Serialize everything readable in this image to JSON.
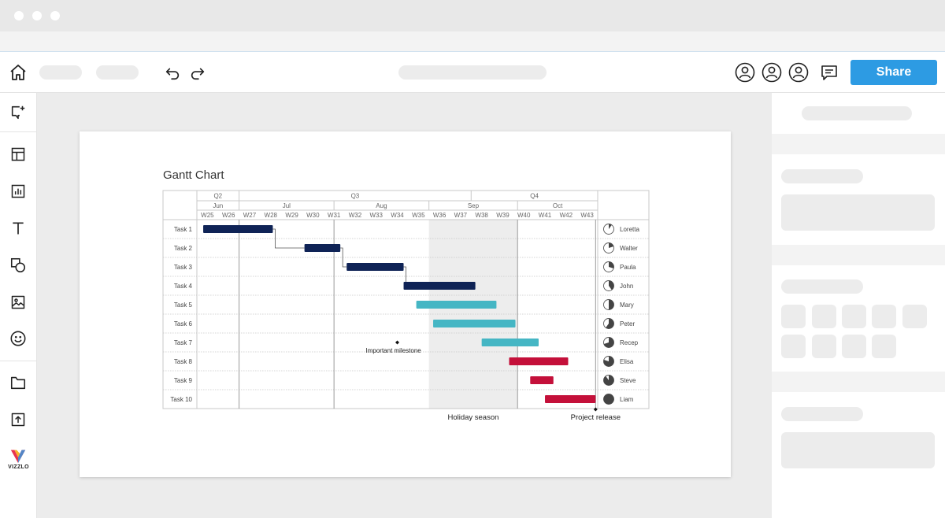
{
  "toolbar": {
    "share_label": "Share"
  },
  "icons": {
    "home": "home-icon",
    "undo": "undo-icon",
    "redo": "redo-icon",
    "user": "user-icon",
    "comment": "comment-icon"
  },
  "sidebar": {
    "icons": [
      "add-slide-icon",
      "layout-icon",
      "chart-icon",
      "text-icon",
      "shapes-icon",
      "image-icon",
      "emoji-icon",
      "folder-icon",
      "upload-icon"
    ],
    "logo_text": "VIZZLO"
  },
  "colors": {
    "accent": "#2d9be3",
    "navy": "#0f2356",
    "teal": "#45b6c4",
    "red": "#c4103a",
    "holiday": "#ededed"
  },
  "chart_data": {
    "type": "gantt",
    "title": "Gantt Chart",
    "quarters": [
      {
        "label": "Q2",
        "start": 0,
        "end": 2
      },
      {
        "label": "Q3",
        "start": 2,
        "end": 13
      },
      {
        "label": "Q4",
        "start": 13,
        "end": 19
      }
    ],
    "months": [
      {
        "label": "Jun",
        "start": 0,
        "end": 2
      },
      {
        "label": "Jul",
        "start": 2,
        "end": 6.5
      },
      {
        "label": "Aug",
        "start": 6.5,
        "end": 11
      },
      {
        "label": "Sep",
        "start": 11,
        "end": 15.2
      },
      {
        "label": "Oct",
        "start": 15.2,
        "end": 19
      }
    ],
    "weeks": [
      "W25",
      "W26",
      "W27",
      "W28",
      "W29",
      "W30",
      "W31",
      "W32",
      "W33",
      "W34",
      "W35",
      "W36",
      "W37",
      "W38",
      "W39",
      "W40",
      "W41",
      "W42",
      "W43"
    ],
    "tasks": [
      {
        "name": "Task 1",
        "start": 0.3,
        "end": 3.6,
        "color": "navy",
        "owner": "Loretta",
        "progress": 0.1
      },
      {
        "name": "Task 2",
        "start": 5.1,
        "end": 6.8,
        "color": "navy",
        "owner": "Walter",
        "progress": 0.2
      },
      {
        "name": "Task 3",
        "start": 7.1,
        "end": 9.8,
        "color": "navy",
        "owner": "Paula",
        "progress": 0.3
      },
      {
        "name": "Task 4",
        "start": 9.8,
        "end": 13.2,
        "color": "navy",
        "owner": "John",
        "progress": 0.4
      },
      {
        "name": "Task 5",
        "start": 10.4,
        "end": 14.2,
        "color": "teal",
        "owner": "Mary",
        "progress": 0.5
      },
      {
        "name": "Task 6",
        "start": 11.2,
        "end": 15.1,
        "color": "teal",
        "owner": "Peter",
        "progress": 0.6
      },
      {
        "name": "Task 7",
        "start": 13.5,
        "end": 16.2,
        "color": "teal",
        "owner": "Recep",
        "progress": 0.7
      },
      {
        "name": "Task 8",
        "start": 14.8,
        "end": 17.6,
        "color": "red",
        "owner": "Elisa",
        "progress": 0.8
      },
      {
        "name": "Task 9",
        "start": 15.8,
        "end": 16.9,
        "color": "red",
        "owner": "Steve",
        "progress": 0.9
      },
      {
        "name": "Task 10",
        "start": 16.5,
        "end": 18.9,
        "color": "red",
        "owner": "Liam",
        "progress": 1.0
      }
    ],
    "dependencies": [
      [
        0,
        1
      ],
      [
        1,
        2
      ],
      [
        2,
        3
      ]
    ],
    "holiday": {
      "label": "Holiday season",
      "start": 11,
      "end": 15.2
    },
    "milestones": [
      {
        "label": "Important milestone",
        "x": 9.5,
        "row": 6
      },
      {
        "label": "Project release",
        "x": 18.9,
        "row": 10
      }
    ],
    "verticals": [
      2,
      6.5,
      15.2,
      18.9
    ]
  }
}
